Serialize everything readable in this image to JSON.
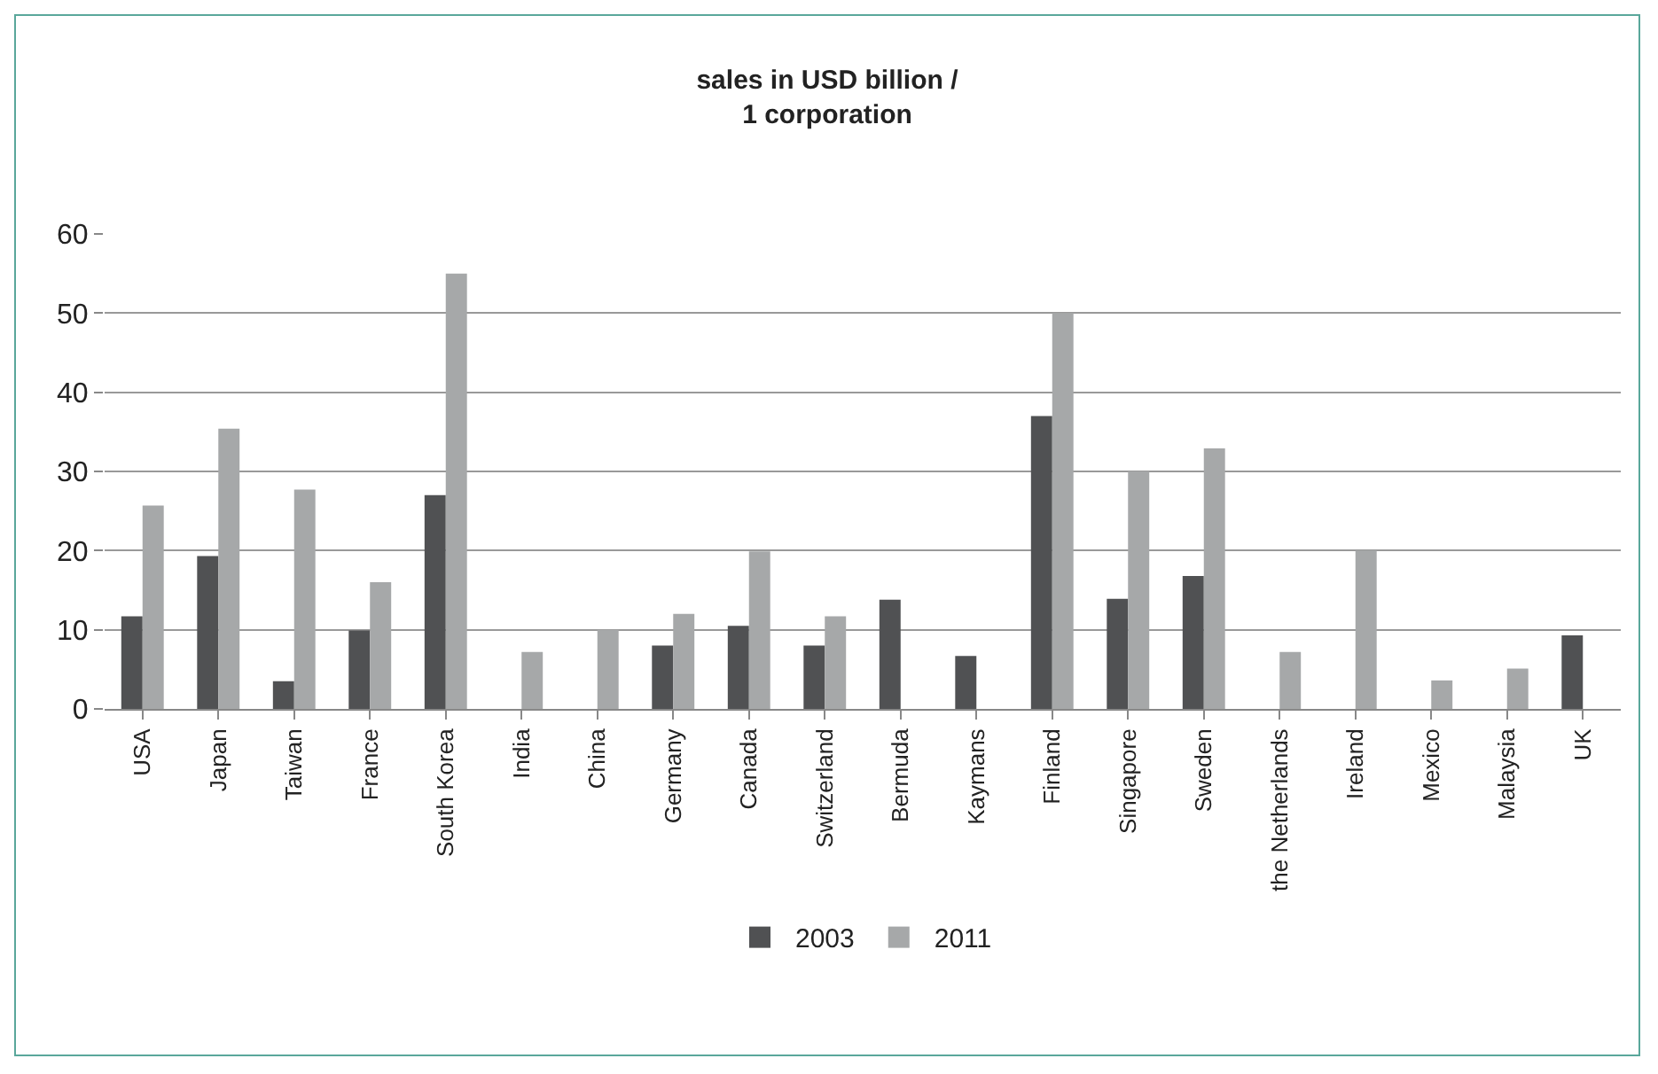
{
  "chart_data": {
    "type": "bar",
    "title": "sales in USD billion /\n1 corporation",
    "categories": [
      "USA",
      "Japan",
      "Taiwan",
      "France",
      "South Korea",
      "India",
      "China",
      "Germany",
      "Canada",
      "Switzerland",
      "Bermuda",
      "Kaymans",
      "Finland",
      "Singapore",
      "Sweden",
      "the Netherlands",
      "Ireland",
      "Mexico",
      "Malaysia",
      "UK"
    ],
    "series": [
      {
        "name": "2003",
        "color": "#505153",
        "values": [
          11.7,
          19.3,
          3.5,
          9.9,
          27,
          null,
          null,
          8,
          10.5,
          8,
          13.8,
          6.7,
          37,
          13.9,
          16.8,
          null,
          null,
          null,
          null,
          9.3
        ]
      },
      {
        "name": "2011",
        "color": "#a6a8a9",
        "values": [
          25.7,
          35.4,
          27.7,
          16,
          55,
          7.2,
          10,
          12,
          19.9,
          11.7,
          null,
          null,
          50,
          30,
          32.9,
          7.2,
          20,
          3.6,
          5.1,
          null
        ]
      }
    ],
    "ylim": [
      0,
      60
    ],
    "yticks": [
      0,
      10,
      20,
      30,
      40,
      50,
      60
    ],
    "grid": "y",
    "legend": "bottom"
  }
}
